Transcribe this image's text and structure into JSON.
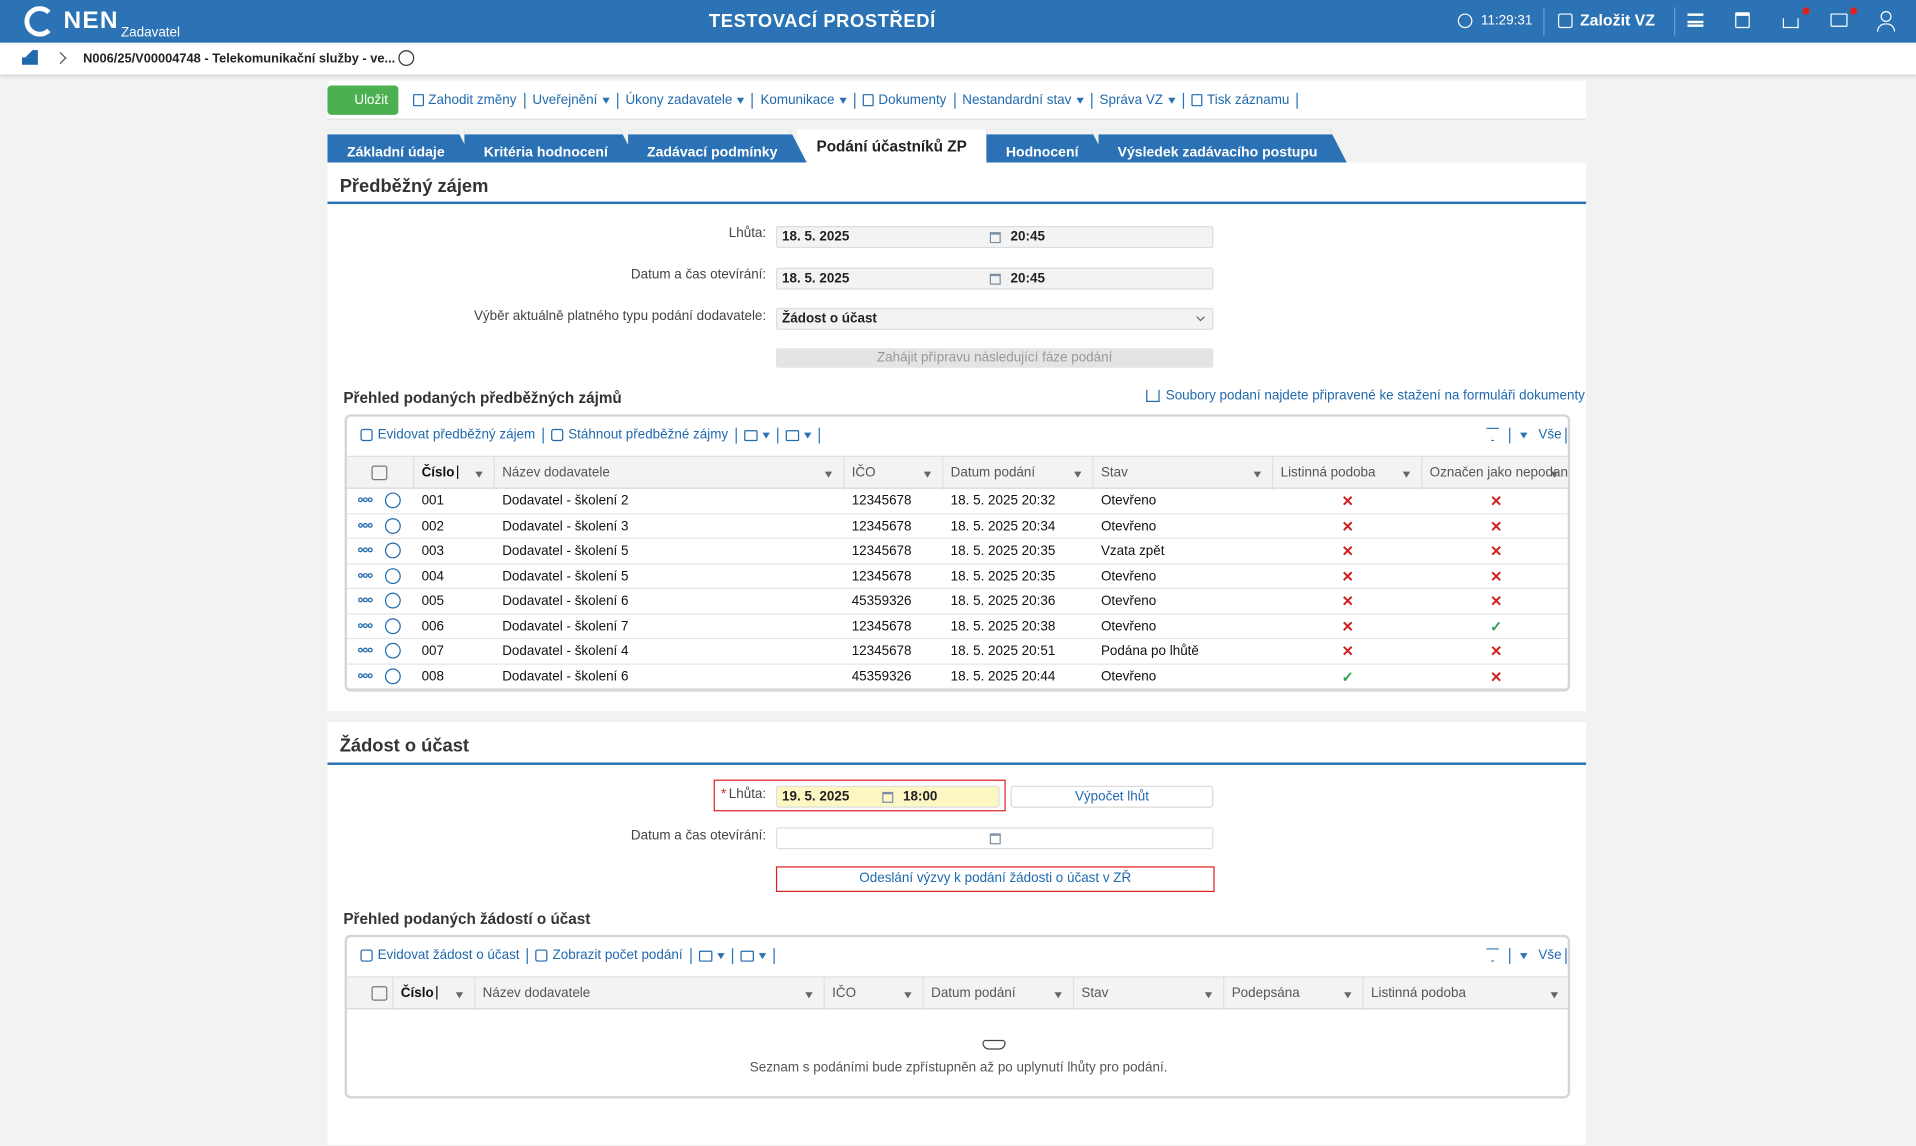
{
  "header": {
    "logo": "NEN",
    "role": "Zadavatel",
    "env": "TESTOVACÍ PROSTŘEDÍ",
    "time": "11:29:31",
    "create": "Založit VZ"
  },
  "breadcrumb": {
    "item": "N006/25/V00004748 - Telekomunikační služby - ve..."
  },
  "toolbar": {
    "save": "Uložit",
    "items": [
      "Zahodit změny",
      "Uveřejnění",
      "Úkony zadavatele",
      "Komunikace",
      "Dokumenty",
      "Nestandardní stav",
      "Správa VZ",
      "Tisk záznamu"
    ]
  },
  "tabs": {
    "items": [
      "Základní údaje",
      "Kritéria hodnocení",
      "Zadávací podmínky",
      "Podání účastníků ZP",
      "Hodnocení",
      "Výsledek zadávacího postupu"
    ],
    "active": 3
  },
  "section1": {
    "title": "Předběžný zájem",
    "fields": [
      {
        "label": "Lhůta:",
        "date": "18. 5. 2025",
        "time": "20:45"
      },
      {
        "label": "Datum a čas otevírání:",
        "date": "18. 5. 2025",
        "time": "20:45"
      }
    ],
    "select": {
      "label": "Výběr aktuálně platného typu podání dodavatele:",
      "value": "Žádost o účast"
    },
    "button": "Zahájit přípravu následující fáze podání"
  },
  "table1": {
    "title": "Přehled podaných předběžných zájmů",
    "download_note": "Soubory podaní najdete připravené ke stažení na formuláři dokumenty",
    "actions": [
      "Evidovat předběžný zájem",
      "Stáhnout předběžné zájmy"
    ],
    "filter": "Vše",
    "columns": [
      "Číslo",
      "Název dodavatele",
      "IČO",
      "Datum podání",
      "Stav",
      "Listinná podoba",
      "Označen jako nepodaný"
    ],
    "rows": [
      [
        "001",
        "Dodavatel - školení 2",
        "12345678",
        "18. 5. 2025 20:32",
        "Otevřeno",
        "✕",
        "✕"
      ],
      [
        "002",
        "Dodavatel - školení 3",
        "12345678",
        "18. 5. 2025 20:34",
        "Otevřeno",
        "✕",
        "✕"
      ],
      [
        "003",
        "Dodavatel - školení 5",
        "12345678",
        "18. 5. 2025 20:35",
        "Vzata zpět",
        "✕",
        "✕"
      ],
      [
        "004",
        "Dodavatel - školení 5",
        "12345678",
        "18. 5. 2025 20:35",
        "Otevřeno",
        "✕",
        "✕"
      ],
      [
        "005",
        "Dodavatel - školení 6",
        "45359326",
        "18. 5. 2025 20:36",
        "Otevřeno",
        "✕",
        "✕"
      ],
      [
        "006",
        "Dodavatel - školení 7",
        "12345678",
        "18. 5. 2025 20:38",
        "Otevřeno",
        "✕",
        "✓"
      ],
      [
        "007",
        "Dodavatel - školení 4",
        "12345678",
        "18. 5. 2025 20:51",
        "Podána po lhůtě",
        "✕",
        "✕"
      ],
      [
        "008",
        "Dodavatel - školení 6",
        "45359326",
        "18. 5. 2025 20:44",
        "Otevřeno",
        "✓",
        "✕"
      ]
    ]
  },
  "section2": {
    "title": "Žádost o účast",
    "deadline": {
      "required": "*",
      "label": "Lhůta:",
      "date": "19. 5. 2025",
      "time": "18:00"
    },
    "calc": "Výpočet lhůt",
    "opening": {
      "label": "Datum a čas otevírání:"
    },
    "send": "Odeslání výzvy k podání žádosti o účast v ZŘ"
  },
  "table2": {
    "title": "Přehled podaných žádostí o účast",
    "actions": [
      "Evidovat žádost o účast",
      "Zobrazit počet podání"
    ],
    "filter": "Vše",
    "columns": [
      "Číslo",
      "Název dodavatele",
      "IČO",
      "Datum podání",
      "Stav",
      "Podepsána",
      "Listinná podoba"
    ],
    "empty": "Seznam s podáními bude zpřístupněn až po uplynutí lhůty pro podání."
  }
}
